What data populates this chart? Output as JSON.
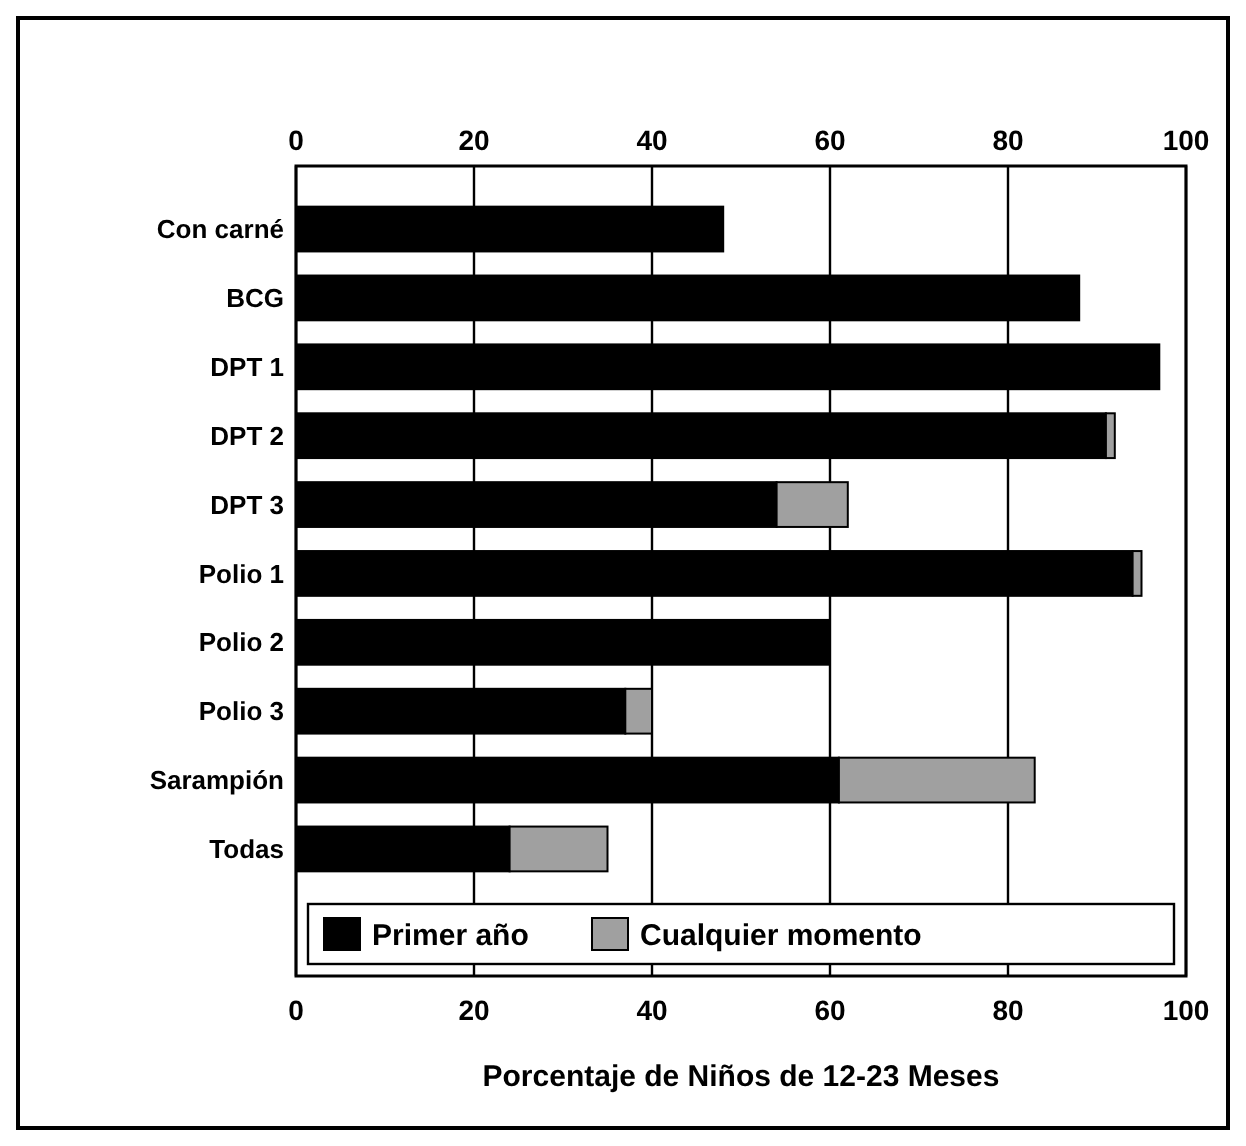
{
  "chart_data": {
    "type": "bar",
    "orientation": "horizontal",
    "stacked": true,
    "xlabel": "Porcentaje de Niños de 12-23 Meses",
    "categories": [
      "Con carné",
      "BCG",
      "DPT 1",
      "DPT 2",
      "DPT 3",
      "Polio 1",
      "Polio 2",
      "Polio 3",
      "Sarampión",
      "Todas"
    ],
    "series": [
      {
        "name": "Primer año",
        "color": "#000000",
        "values": [
          48,
          88,
          97,
          91,
          54,
          94,
          60,
          37,
          61,
          24
        ]
      },
      {
        "name": "Cualquier momento",
        "color": "#a0a0a0",
        "values": [
          0,
          0,
          0,
          1,
          8,
          1,
          0,
          3,
          22,
          11
        ]
      }
    ],
    "xlim": [
      0,
      100
    ],
    "xticks": [
      0,
      20,
      40,
      60,
      80,
      100
    ],
    "x2lim": [
      0,
      100
    ],
    "x2ticks": [
      0,
      20,
      40,
      60,
      80,
      100
    ],
    "grid": "x",
    "legend": "bottom"
  }
}
